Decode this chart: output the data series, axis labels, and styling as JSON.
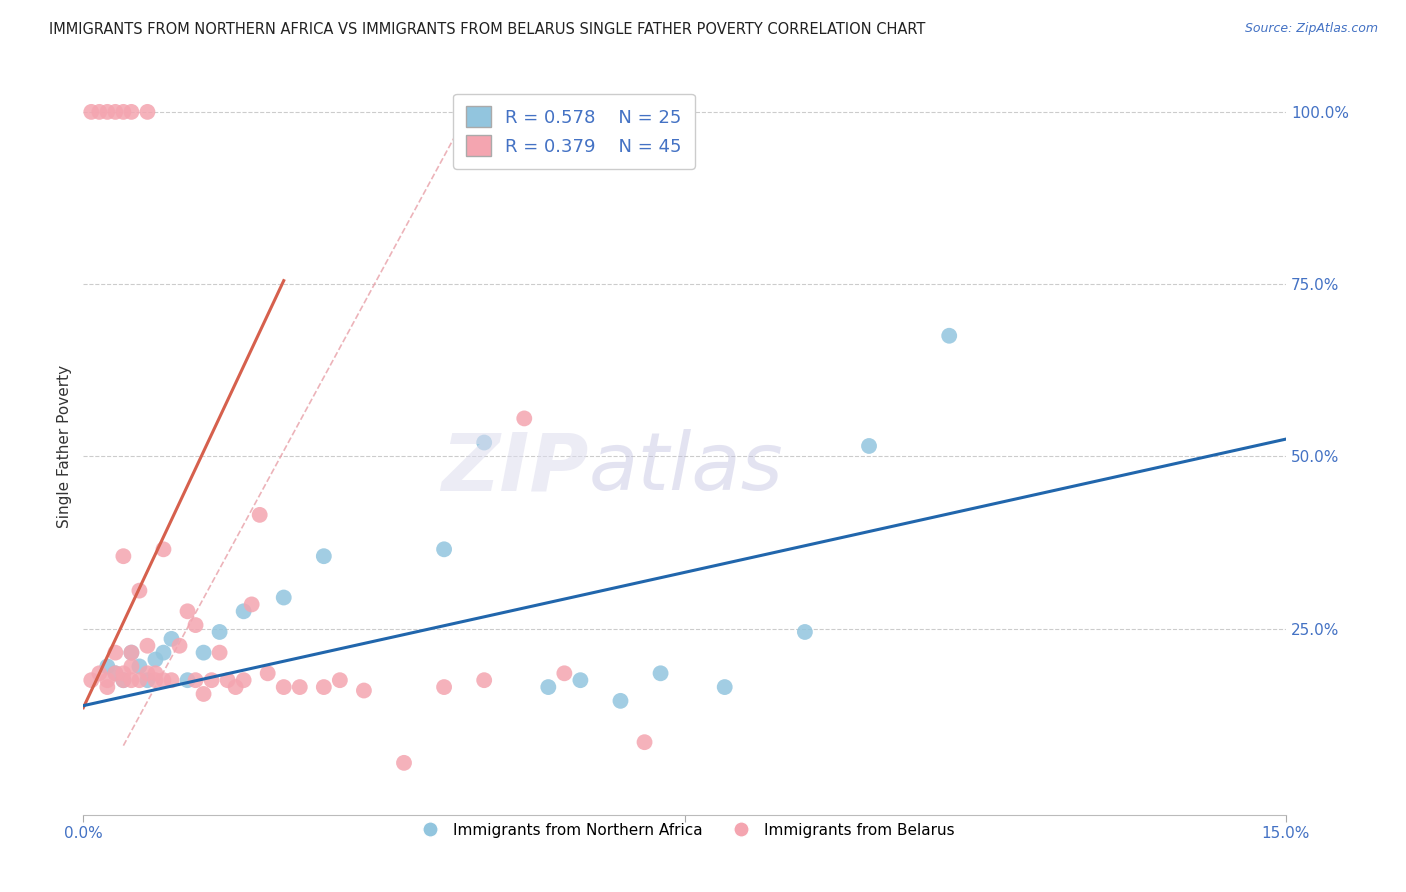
{
  "title": "IMMIGRANTS FROM NORTHERN AFRICA VS IMMIGRANTS FROM BELARUS SINGLE FATHER POVERTY CORRELATION CHART",
  "source": "Source: ZipAtlas.com",
  "legend_label_blue": "Immigrants from Northern Africa",
  "legend_label_pink": "Immigrants from Belarus",
  "R_blue": 0.578,
  "N_blue": 25,
  "R_pink": 0.379,
  "N_pink": 45,
  "blue_color": "#92C5DE",
  "pink_color": "#F4A5B0",
  "blue_line_color": "#2166AC",
  "pink_line_color": "#D6604D",
  "ylabel": "Single Father Poverty",
  "xlim": [
    0.0,
    0.15
  ],
  "ylim": [
    -0.02,
    1.05
  ],
  "ytick_vals": [
    0.0,
    0.25,
    0.5,
    0.75,
    1.0
  ],
  "ytick_labels": [
    "",
    "25.0%",
    "50.0%",
    "75.0%",
    "100.0%"
  ],
  "blue_points_x": [
    0.003,
    0.004,
    0.005,
    0.006,
    0.007,
    0.008,
    0.009,
    0.01,
    0.011,
    0.013,
    0.015,
    0.017,
    0.02,
    0.025,
    0.03,
    0.045,
    0.05,
    0.058,
    0.062,
    0.067,
    0.072,
    0.08,
    0.09,
    0.098,
    0.108
  ],
  "blue_points_y": [
    0.195,
    0.185,
    0.175,
    0.215,
    0.195,
    0.175,
    0.205,
    0.215,
    0.235,
    0.175,
    0.215,
    0.245,
    0.275,
    0.295,
    0.355,
    0.365,
    0.52,
    0.165,
    0.175,
    0.145,
    0.185,
    0.165,
    0.245,
    0.515,
    0.675
  ],
  "pink_points_x": [
    0.001,
    0.002,
    0.003,
    0.003,
    0.004,
    0.004,
    0.005,
    0.005,
    0.005,
    0.006,
    0.006,
    0.006,
    0.007,
    0.007,
    0.008,
    0.008,
    0.009,
    0.009,
    0.01,
    0.01,
    0.011,
    0.012,
    0.013,
    0.014,
    0.014,
    0.015,
    0.016,
    0.017,
    0.018,
    0.019,
    0.02,
    0.021,
    0.022,
    0.023,
    0.025,
    0.027,
    0.03,
    0.032,
    0.035,
    0.04,
    0.045,
    0.05,
    0.055,
    0.06,
    0.07
  ],
  "pink_points_y": [
    0.175,
    0.185,
    0.165,
    0.175,
    0.185,
    0.215,
    0.175,
    0.185,
    0.355,
    0.175,
    0.195,
    0.215,
    0.175,
    0.305,
    0.185,
    0.225,
    0.175,
    0.185,
    0.175,
    0.365,
    0.175,
    0.225,
    0.275,
    0.175,
    0.255,
    0.155,
    0.175,
    0.215,
    0.175,
    0.165,
    0.175,
    0.285,
    0.415,
    0.185,
    0.165,
    0.165,
    0.165,
    0.175,
    0.16,
    0.055,
    0.165,
    0.175,
    0.555,
    0.185,
    0.085
  ],
  "pink_top_x": [
    0.001,
    0.002,
    0.003,
    0.004,
    0.005,
    0.006,
    0.008
  ],
  "pink_top_y": [
    1.0,
    1.0,
    1.0,
    1.0,
    1.0,
    1.0,
    1.0
  ],
  "blue_trend": [
    0.0,
    0.15,
    0.138,
    0.525
  ],
  "pink_trend": [
    0.0,
    0.025,
    0.135,
    0.755
  ],
  "dash_line": [
    0.005,
    0.048,
    0.08,
    1.0
  ]
}
